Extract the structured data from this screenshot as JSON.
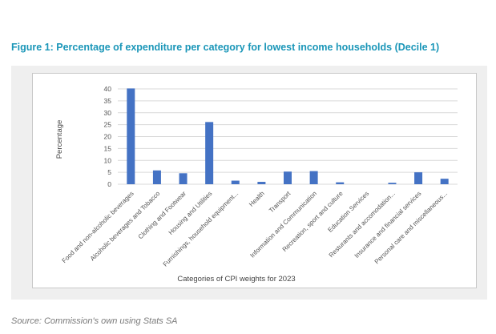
{
  "figure": {
    "title": "Figure 1: Percentage of expenditure per category for lowest income households (Decile 1)",
    "source": "Source: Commission's own using Stats SA"
  },
  "colors": {
    "title": "#1a96b8",
    "bar": "#4472c4",
    "axis_text": "#555555",
    "gridline": "#d9d9d9",
    "panel_background": "#efefef"
  },
  "chart_data": {
    "type": "bar",
    "title": "",
    "xlabel": "Categories of CPI weights for 2023",
    "ylabel": "Percentage",
    "ylim": [
      0,
      40
    ],
    "yticks": [
      0,
      5,
      10,
      15,
      20,
      25,
      30,
      35,
      40
    ],
    "grid": true,
    "legend": "none",
    "categories": [
      "Food and non-alcoholic beverages",
      "Alcoholic beverages and Tobacco",
      "Clothing and Footwear",
      "Housing and Utilities",
      "Furnishings, household equipment...",
      "Health",
      "Transport",
      "Information and Communication",
      "Recreation, sport and culture",
      "Education Services",
      "Resturants and accomodation...",
      "Insurance and financial services",
      "Personal care and miscellaneous..."
    ],
    "values": [
      40.2,
      5.8,
      4.6,
      26.1,
      1.5,
      1.0,
      5.3,
      5.5,
      0.8,
      0.0,
      0.6,
      5.0,
      2.3
    ]
  }
}
